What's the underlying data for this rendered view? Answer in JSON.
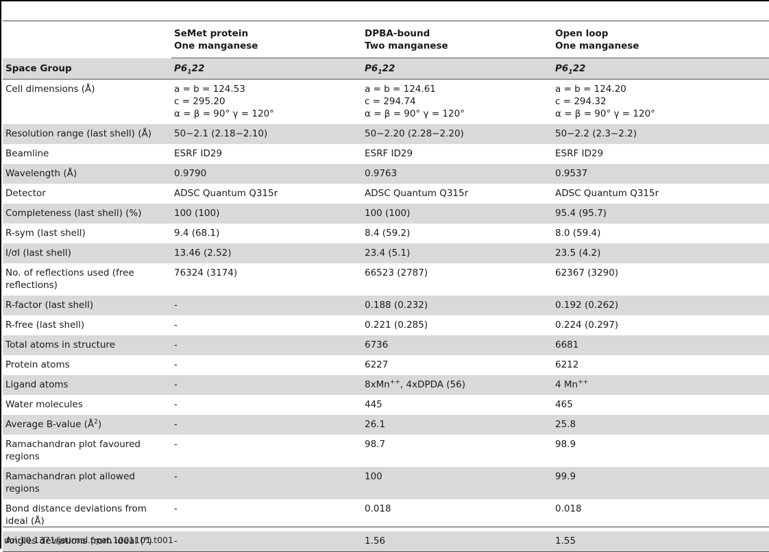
{
  "headers": [
    "",
    [
      "SeMet protein",
      "One manganese"
    ],
    [
      "DPBA-bound",
      "Two manganese"
    ],
    [
      "Open loop",
      "One manganese"
    ]
  ],
  "space_group": {
    "label": "Space Group",
    "values": [
      {
        "pre": "P6",
        "sub": "1",
        "post": "22"
      },
      {
        "pre": "P6",
        "sub": "1",
        "post": "22"
      },
      {
        "pre": "P6",
        "sub": "1",
        "post": "22"
      }
    ]
  },
  "rows": [
    {
      "label": "Cell dimensions (Å)",
      "shade": false,
      "cells": [
        [
          "a = b = 124.53",
          "c = 295.20",
          "α = β = 90°  γ = 120°"
        ],
        [
          "a = b = 124.61",
          "c = 294.74",
          "α = β = 90°  γ = 120°"
        ],
        [
          "a = b = 124.20",
          "c = 294.32",
          "α = β = 90°  γ = 120°"
        ]
      ]
    },
    {
      "label": "Resolution range (last shell) (Å)",
      "shade": true,
      "cells": [
        [
          "50−2.1 (2.18−2.10)"
        ],
        [
          "50−2.20 (2.28−2.20)"
        ],
        [
          "50−2.2 (2.3−2.2)"
        ]
      ]
    },
    {
      "label": "Beamline",
      "shade": false,
      "cells": [
        [
          "ESRF ID29"
        ],
        [
          "ESRF ID29"
        ],
        [
          "ESRF ID29"
        ]
      ]
    },
    {
      "label": "Wavelength (Å)",
      "shade": true,
      "cells": [
        [
          "0.9790"
        ],
        [
          "0.9763"
        ],
        [
          "0.9537"
        ]
      ]
    },
    {
      "label": "Detector",
      "shade": false,
      "cells": [
        [
          "ADSC Quantum Q315r"
        ],
        [
          "ADSC Quantum Q315r"
        ],
        [
          "ADSC Quantum Q315r"
        ]
      ]
    },
    {
      "label": "Completeness (last shell) (%)",
      "shade": true,
      "cells": [
        [
          "100 (100)"
        ],
        [
          "100 (100)"
        ],
        [
          "95.4 (95.7)"
        ]
      ]
    },
    {
      "label": "R-sym (last shell)",
      "shade": false,
      "cells": [
        [
          "9.4 (68.1)"
        ],
        [
          "8.4 (59.2)"
        ],
        [
          "8.0 (59.4)"
        ]
      ]
    },
    {
      "label": "I/σI (last shell)",
      "shade": true,
      "cells": [
        [
          "13.46 (2.52)"
        ],
        [
          "23.4 (5.1)"
        ],
        [
          "23.5 (4.2)"
        ]
      ]
    },
    {
      "label": "No. of reflections used (free reflections)",
      "shade": false,
      "cells": [
        [
          "76324 (3174)"
        ],
        [
          "66523 (2787)"
        ],
        [
          "62367 (3290)"
        ]
      ]
    },
    {
      "label": "R-factor (last shell)",
      "shade": true,
      "cells": [
        [
          "-"
        ],
        [
          "0.188 (0.232)"
        ],
        [
          "0.192 (0.262)"
        ]
      ]
    },
    {
      "label": "R-free (last shell)",
      "shade": false,
      "cells": [
        [
          "-"
        ],
        [
          "0.221 (0.285)"
        ],
        [
          "0.224 (0.297)"
        ]
      ]
    },
    {
      "label": "Total atoms in structure",
      "shade": true,
      "cells": [
        [
          "-"
        ],
        [
          "6736"
        ],
        [
          "6681"
        ]
      ]
    },
    {
      "label": "Protein atoms",
      "shade": false,
      "cells": [
        [
          "-"
        ],
        [
          "6227"
        ],
        [
          "6212"
        ]
      ]
    },
    {
      "label": "Ligand atoms",
      "shade": true,
      "cells": [
        [
          "-"
        ],
        [
          "8xMn^++, 4xDPDA (56)"
        ],
        [
          "4 Mn^++"
        ]
      ]
    },
    {
      "label": "Water molecules",
      "shade": false,
      "cells": [
        [
          "-"
        ],
        [
          "445"
        ],
        [
          "465"
        ]
      ]
    },
    {
      "label": "Average B-value (Å^2)",
      "shade": true,
      "cells": [
        [
          "-"
        ],
        [
          "26.1"
        ],
        [
          "25.8"
        ]
      ]
    },
    {
      "label": "Ramachandran plot favoured regions",
      "shade": false,
      "cells": [
        [
          "-"
        ],
        [
          "98.7"
        ],
        [
          "98.9"
        ]
      ]
    },
    {
      "label": "Ramachandran plot allowed regions",
      "shade": true,
      "cells": [
        [
          "-"
        ],
        [
          "100"
        ],
        [
          "99.9"
        ]
      ]
    },
    {
      "label": "Bond distance deviations from ideal (Å)",
      "shade": false,
      "cells": [
        [
          "-"
        ],
        [
          "0.018"
        ],
        [
          "0.018"
        ]
      ]
    },
    {
      "label": "Angles deviations from ideal (°)",
      "shade": true,
      "cells": [
        [
          "-"
        ],
        [
          "1.56"
        ],
        [
          "1.55"
        ]
      ]
    }
  ],
  "doi": "doi:10.1371/journal.ppat.1001101.t001"
}
